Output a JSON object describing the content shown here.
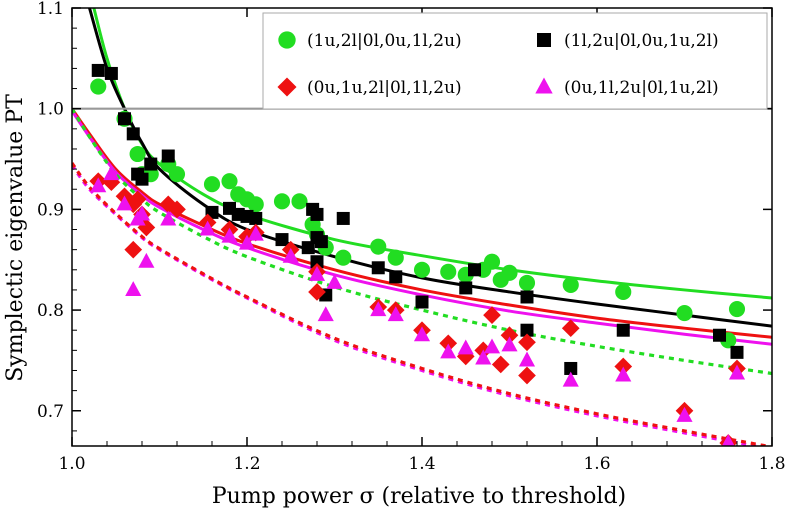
{
  "chart_data": {
    "type": "scatter",
    "title": "",
    "xlabel": "Pump power σ (relative to threshold)",
    "ylabel": "Symplectic eigenvalue PT",
    "xlim": [
      1.0,
      1.8
    ],
    "ylim": [
      0.665,
      1.1
    ],
    "xticks": [
      1.0,
      1.2,
      1.4,
      1.6,
      1.8
    ],
    "xtick_labels": [
      "1.0",
      "1.2",
      "1.4",
      "1.6",
      "1.8"
    ],
    "yticks": [
      0.7,
      0.8,
      0.9,
      1.0,
      1.1
    ],
    "ytick_labels": [
      "0.7",
      "0.8",
      "0.9",
      "1.0",
      "1.1"
    ],
    "reference_line": {
      "y": 1.0,
      "color": "#999999"
    },
    "legend_position": "top-right",
    "series": [
      {
        "name": "(1u,2l|0l,0u,1l,2u)",
        "marker": "circle",
        "color": "#22dd22",
        "points": [
          [
            1.03,
            1.022
          ],
          [
            1.06,
            0.99
          ],
          [
            1.075,
            0.955
          ],
          [
            1.08,
            0.935
          ],
          [
            1.09,
            0.935
          ],
          [
            1.11,
            0.945
          ],
          [
            1.12,
            0.935
          ],
          [
            1.16,
            0.925
          ],
          [
            1.18,
            0.928
          ],
          [
            1.19,
            0.915
          ],
          [
            1.2,
            0.91
          ],
          [
            1.21,
            0.905
          ],
          [
            1.24,
            0.908
          ],
          [
            1.26,
            0.908
          ],
          [
            1.275,
            0.885
          ],
          [
            1.28,
            0.875
          ],
          [
            1.29,
            0.862
          ],
          [
            1.31,
            0.852
          ],
          [
            1.35,
            0.863
          ],
          [
            1.37,
            0.852
          ],
          [
            1.4,
            0.84
          ],
          [
            1.43,
            0.838
          ],
          [
            1.45,
            0.835
          ],
          [
            1.47,
            0.84
          ],
          [
            1.48,
            0.848
          ],
          [
            1.49,
            0.83
          ],
          [
            1.5,
            0.837
          ],
          [
            1.52,
            0.827
          ],
          [
            1.57,
            0.825
          ],
          [
            1.63,
            0.818
          ],
          [
            1.7,
            0.797
          ],
          [
            1.75,
            0.77
          ],
          [
            1.76,
            0.801
          ]
        ]
      },
      {
        "name": "(1l,2u|0l,0u,1u,2l)",
        "marker": "square",
        "color": "#000000",
        "points": [
          [
            1.03,
            1.038
          ],
          [
            1.045,
            1.035
          ],
          [
            1.06,
            0.99
          ],
          [
            1.07,
            0.975
          ],
          [
            1.075,
            0.935
          ],
          [
            1.08,
            0.93
          ],
          [
            1.09,
            0.945
          ],
          [
            1.11,
            0.953
          ],
          [
            1.16,
            0.897
          ],
          [
            1.18,
            0.901
          ],
          [
            1.19,
            0.895
          ],
          [
            1.2,
            0.893
          ],
          [
            1.21,
            0.891
          ],
          [
            1.24,
            0.87
          ],
          [
            1.27,
            0.862
          ],
          [
            1.275,
            0.9
          ],
          [
            1.28,
            0.895
          ],
          [
            1.28,
            0.872
          ],
          [
            1.28,
            0.848
          ],
          [
            1.285,
            0.868
          ],
          [
            1.29,
            0.815
          ],
          [
            1.31,
            0.891
          ],
          [
            1.35,
            0.842
          ],
          [
            1.37,
            0.833
          ],
          [
            1.4,
            0.808
          ],
          [
            1.45,
            0.822
          ],
          [
            1.46,
            0.84
          ],
          [
            1.52,
            0.813
          ],
          [
            1.52,
            0.78
          ],
          [
            1.57,
            0.742
          ],
          [
            1.63,
            0.78
          ],
          [
            1.74,
            0.775
          ],
          [
            1.76,
            0.758
          ]
        ]
      },
      {
        "name": "(0u,1u,2l|0l,1l,2u)",
        "marker": "diamond",
        "color": "#ee1111",
        "points": [
          [
            1.03,
            0.928
          ],
          [
            1.045,
            0.927
          ],
          [
            1.06,
            0.913
          ],
          [
            1.07,
            0.905
          ],
          [
            1.07,
            0.86
          ],
          [
            1.075,
            0.91
          ],
          [
            1.08,
            0.895
          ],
          [
            1.085,
            0.882
          ],
          [
            1.11,
            0.905
          ],
          [
            1.12,
            0.9
          ],
          [
            1.155,
            0.887
          ],
          [
            1.18,
            0.88
          ],
          [
            1.2,
            0.873
          ],
          [
            1.21,
            0.877
          ],
          [
            1.25,
            0.86
          ],
          [
            1.28,
            0.838
          ],
          [
            1.28,
            0.818
          ],
          [
            1.35,
            0.803
          ],
          [
            1.37,
            0.8
          ],
          [
            1.4,
            0.78
          ],
          [
            1.43,
            0.767
          ],
          [
            1.45,
            0.754
          ],
          [
            1.47,
            0.76
          ],
          [
            1.48,
            0.795
          ],
          [
            1.49,
            0.746
          ],
          [
            1.5,
            0.775
          ],
          [
            1.52,
            0.768
          ],
          [
            1.52,
            0.735
          ],
          [
            1.57,
            0.782
          ],
          [
            1.63,
            0.744
          ],
          [
            1.7,
            0.7
          ],
          [
            1.75,
            0.668
          ],
          [
            1.76,
            0.742
          ]
        ]
      },
      {
        "name": "(0u,1l,2u|0l,1u,2l)",
        "marker": "triangle",
        "color": "#ee11ee",
        "points": [
          [
            1.03,
            0.923
          ],
          [
            1.045,
            0.935
          ],
          [
            1.06,
            0.905
          ],
          [
            1.07,
            0.82
          ],
          [
            1.075,
            0.89
          ],
          [
            1.08,
            0.895
          ],
          [
            1.085,
            0.848
          ],
          [
            1.11,
            0.89
          ],
          [
            1.155,
            0.88
          ],
          [
            1.18,
            0.873
          ],
          [
            1.2,
            0.866
          ],
          [
            1.21,
            0.875
          ],
          [
            1.25,
            0.853
          ],
          [
            1.28,
            0.835
          ],
          [
            1.29,
            0.795
          ],
          [
            1.3,
            0.827
          ],
          [
            1.35,
            0.8
          ],
          [
            1.37,
            0.795
          ],
          [
            1.4,
            0.775
          ],
          [
            1.43,
            0.758
          ],
          [
            1.45,
            0.762
          ],
          [
            1.47,
            0.752
          ],
          [
            1.48,
            0.763
          ],
          [
            1.5,
            0.765
          ],
          [
            1.52,
            0.75
          ],
          [
            1.57,
            0.73
          ],
          [
            1.63,
            0.735
          ],
          [
            1.7,
            0.695
          ],
          [
            1.75,
            0.668
          ],
          [
            1.76,
            0.737
          ]
        ]
      }
    ],
    "curves": [
      {
        "name": "green-solid",
        "color": "#22dd22",
        "dash": false,
        "x": [
          1.025,
          1.04,
          1.06,
          1.08,
          1.1,
          1.15,
          1.2,
          1.3,
          1.4,
          1.5,
          1.6,
          1.7,
          1.8
        ],
        "y": [
          1.1,
          1.05,
          1.0,
          0.965,
          0.945,
          0.915,
          0.895,
          0.87,
          0.854,
          0.84,
          0.829,
          0.82,
          0.812
        ]
      },
      {
        "name": "black-solid",
        "color": "#000000",
        "dash": false,
        "x": [
          1.02,
          1.04,
          1.06,
          1.08,
          1.1,
          1.15,
          1.2,
          1.3,
          1.4,
          1.5,
          1.6,
          1.7,
          1.8
        ],
        "y": [
          1.1,
          1.04,
          1.0,
          0.966,
          0.94,
          0.905,
          0.88,
          0.853,
          0.832,
          0.818,
          0.806,
          0.795,
          0.784
        ]
      },
      {
        "name": "red-solid",
        "color": "#ee1111",
        "dash": false,
        "x": [
          1.0,
          1.02,
          1.05,
          1.08,
          1.1,
          1.15,
          1.2,
          1.3,
          1.4,
          1.5,
          1.6,
          1.7,
          1.8
        ],
        "y": [
          1.0,
          0.975,
          0.94,
          0.917,
          0.905,
          0.884,
          0.866,
          0.84,
          0.82,
          0.805,
          0.792,
          0.782,
          0.773
        ]
      },
      {
        "name": "magenta-solid",
        "color": "#ee11ee",
        "dash": false,
        "x": [
          1.0,
          1.02,
          1.05,
          1.08,
          1.1,
          1.15,
          1.2,
          1.3,
          1.4,
          1.5,
          1.6,
          1.7,
          1.8
        ],
        "y": [
          0.998,
          0.972,
          0.937,
          0.914,
          0.902,
          0.88,
          0.862,
          0.835,
          0.815,
          0.799,
          0.787,
          0.776,
          0.766
        ]
      },
      {
        "name": "green-dashed",
        "color": "#22dd22",
        "dash": true,
        "x": [
          1.0,
          1.02,
          1.05,
          1.08,
          1.1,
          1.15,
          1.2,
          1.3,
          1.4,
          1.5,
          1.6,
          1.7,
          1.8
        ],
        "y": [
          1.0,
          0.972,
          0.935,
          0.91,
          0.897,
          0.873,
          0.853,
          0.823,
          0.8,
          0.78,
          0.764,
          0.75,
          0.737
        ]
      },
      {
        "name": "magenta-dashed",
        "color": "#ee11ee",
        "dash": true,
        "x": [
          1.0,
          1.02,
          1.05,
          1.08,
          1.1,
          1.15,
          1.2,
          1.3,
          1.4,
          1.5,
          1.6,
          1.7,
          1.8
        ],
        "y": [
          0.944,
          0.92,
          0.895,
          0.872,
          0.86,
          0.835,
          0.812,
          0.77,
          0.74,
          0.715,
          0.695,
          0.678,
          0.662
        ]
      },
      {
        "name": "red-dashed",
        "color": "#ee1111",
        "dash": true,
        "x": [
          1.0,
          1.02,
          1.05,
          1.08,
          1.1,
          1.15,
          1.2,
          1.3,
          1.4,
          1.5,
          1.6,
          1.7,
          1.8
        ],
        "y": [
          0.946,
          0.922,
          0.896,
          0.873,
          0.861,
          0.836,
          0.813,
          0.772,
          0.742,
          0.717,
          0.697,
          0.68,
          0.664
        ]
      }
    ]
  }
}
